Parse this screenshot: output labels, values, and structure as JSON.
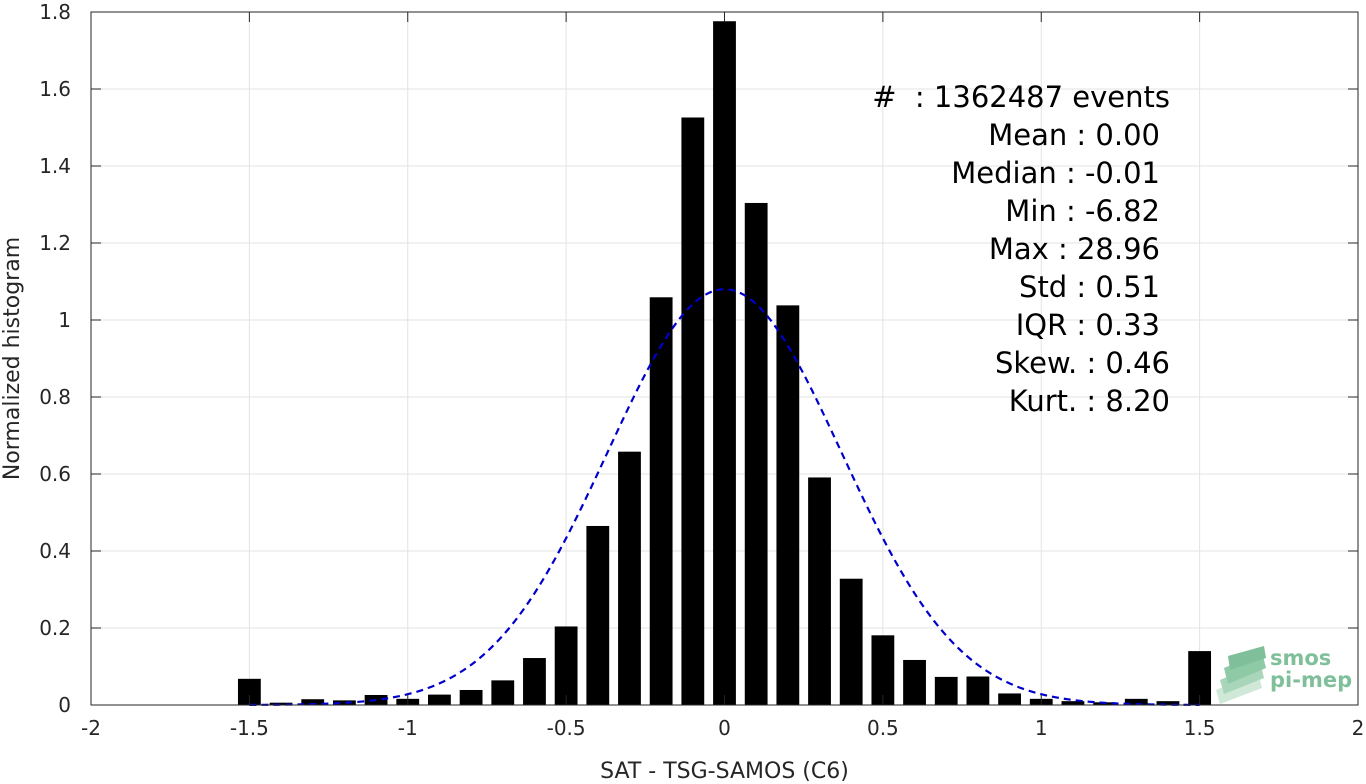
{
  "chart_data": {
    "type": "bar",
    "title": "",
    "xlabel": "SAT - TSG-SAMOS (C6)",
    "ylabel": "Normalized histogram",
    "xlim": [
      -2,
      2
    ],
    "ylim": [
      0,
      1.8
    ],
    "x_ticks": [
      -2,
      -1.5,
      -1,
      -0.5,
      0,
      0.5,
      1,
      1.5,
      2
    ],
    "x_tick_labels": [
      "-2",
      "-1.5",
      "-1",
      "-0.5",
      "0",
      "0.5",
      "1",
      "1.5",
      "2"
    ],
    "y_ticks": [
      0,
      0.2,
      0.4,
      0.6,
      0.8,
      1,
      1.2,
      1.4,
      1.6,
      1.8
    ],
    "y_tick_labels": [
      "0",
      "0.2",
      "0.4",
      "0.6",
      "0.8",
      "1",
      "1.2",
      "1.4",
      "1.6",
      "1.8"
    ],
    "grid": true,
    "bar_color": "#000000",
    "bins": [
      -1.5,
      -1.4,
      -1.3,
      -1.2,
      -1.1,
      -1.0,
      -0.9,
      -0.8,
      -0.7,
      -0.6,
      -0.5,
      -0.4,
      -0.3,
      -0.2,
      -0.1,
      0.0,
      0.1,
      0.2,
      0.3,
      0.4,
      0.5,
      0.6,
      0.7,
      0.8,
      0.9,
      1.0,
      1.1,
      1.2,
      1.3,
      1.4,
      1.5
    ],
    "values": [
      0.068,
      0.006,
      0.015,
      0.012,
      0.026,
      0.016,
      0.027,
      0.039,
      0.064,
      0.122,
      0.204,
      0.465,
      0.658,
      1.059,
      1.526,
      1.776,
      1.304,
      1.038,
      0.591,
      0.328,
      0.181,
      0.117,
      0.073,
      0.074,
      0.03,
      0.016,
      0.01,
      0.007,
      0.016,
      0.01,
      0.14
    ],
    "gaussian_fit": {
      "mean": 0.0,
      "std": 0.37,
      "peak": 1.08,
      "color": "#0000cc",
      "style": "dashed",
      "range": [
        -1.5,
        1.5
      ]
    },
    "stats_box": [
      "#  : 1362487 events",
      "Mean : 0.00",
      "Median : -0.01",
      "Min : -6.82",
      "Max : 28.96",
      "Std : 0.51",
      "IQR : 0.33",
      "Skew. : 0.46",
      "Kurt. : 8.20"
    ]
  },
  "logo": {
    "line1": "smos",
    "line2": "pi-mep",
    "color": "#7fbf9a"
  }
}
